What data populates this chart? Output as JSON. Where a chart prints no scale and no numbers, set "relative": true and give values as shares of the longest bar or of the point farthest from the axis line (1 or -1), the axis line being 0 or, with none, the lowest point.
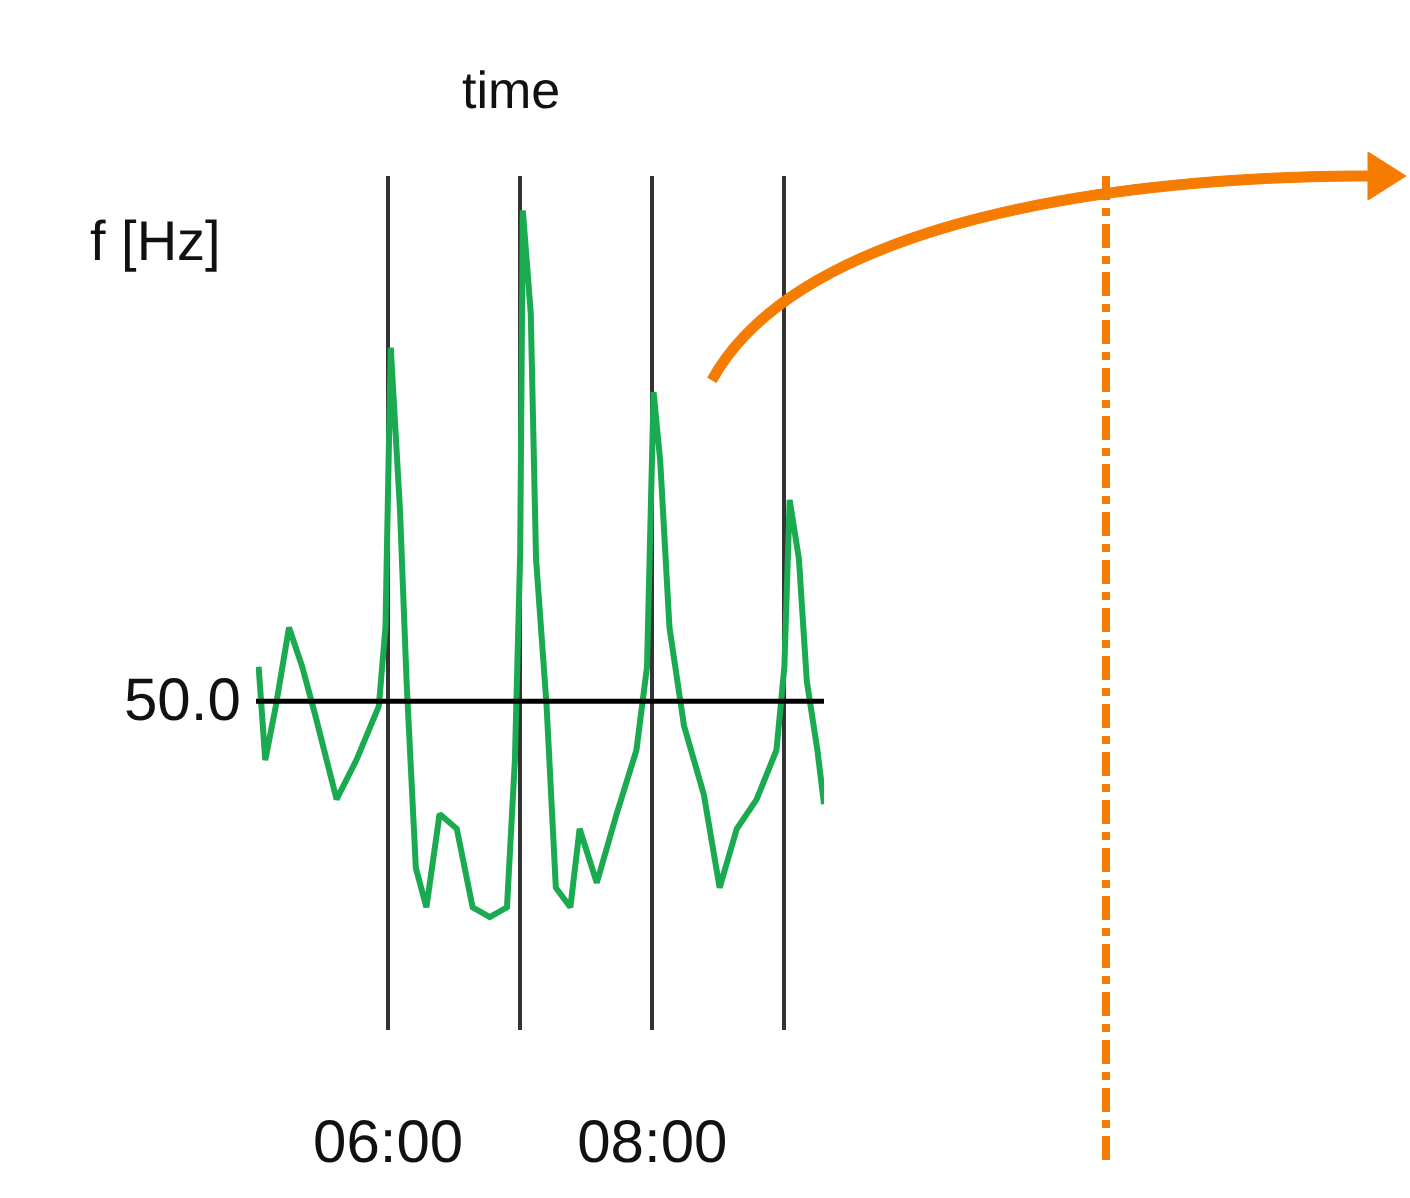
{
  "chart_data": {
    "type": "line",
    "xlabel": "time",
    "ylabel": "f [Hz]",
    "relative": true,
    "grid": "x",
    "tick_labels": "x",
    "x": [
      5.02,
      5.07,
      5.15,
      5.25,
      5.35,
      5.45,
      5.61,
      5.76,
      5.93,
      5.98,
      6.02,
      6.09,
      6.14,
      6.21,
      6.29,
      6.39,
      6.52,
      6.64,
      6.77,
      6.9,
      6.96,
      7.0,
      7.02,
      7.08,
      7.12,
      7.2,
      7.27,
      7.38,
      7.45,
      7.58,
      7.73,
      7.88,
      7.96,
      8.01,
      8.06,
      8.13,
      8.24,
      8.39,
      8.51,
      8.64,
      8.79,
      8.94,
      9.0,
      9.04,
      9.11,
      9.17,
      9.25,
      9.3
    ],
    "xlim": [
      5,
      9.3
    ],
    "xticks": [
      {
        "value": 6,
        "label": "06:00"
      },
      {
        "value": 7,
        "label": null
      },
      {
        "value": 8,
        "label": "08:00"
      },
      {
        "value": 9,
        "label": null
      }
    ],
    "series": [
      {
        "color": "#1aaa50",
        "values": [
          0.07,
          -0.12,
          -0.01,
          0.15,
          0.07,
          -0.03,
          -0.2,
          -0.12,
          -0.01,
          0.15,
          0.72,
          0.39,
          0.04,
          -0.34,
          -0.42,
          -0.23,
          -0.26,
          -0.42,
          -0.44,
          -0.42,
          -0.12,
          0.3,
          1.0,
          0.79,
          0.29,
          -0.01,
          -0.38,
          -0.42,
          -0.26,
          -0.37,
          -0.23,
          -0.1,
          0.07,
          0.63,
          0.49,
          0.15,
          -0.05,
          -0.19,
          -0.38,
          -0.26,
          -0.2,
          -0.1,
          0.07,
          0.41,
          0.29,
          0.04,
          -0.1,
          -0.21
        ]
      }
    ],
    "ref_lines": [
      {
        "axis": "y",
        "value": 0,
        "color": "#000000"
      }
    ],
    "annotations": [
      "50.0"
    ]
  }
}
